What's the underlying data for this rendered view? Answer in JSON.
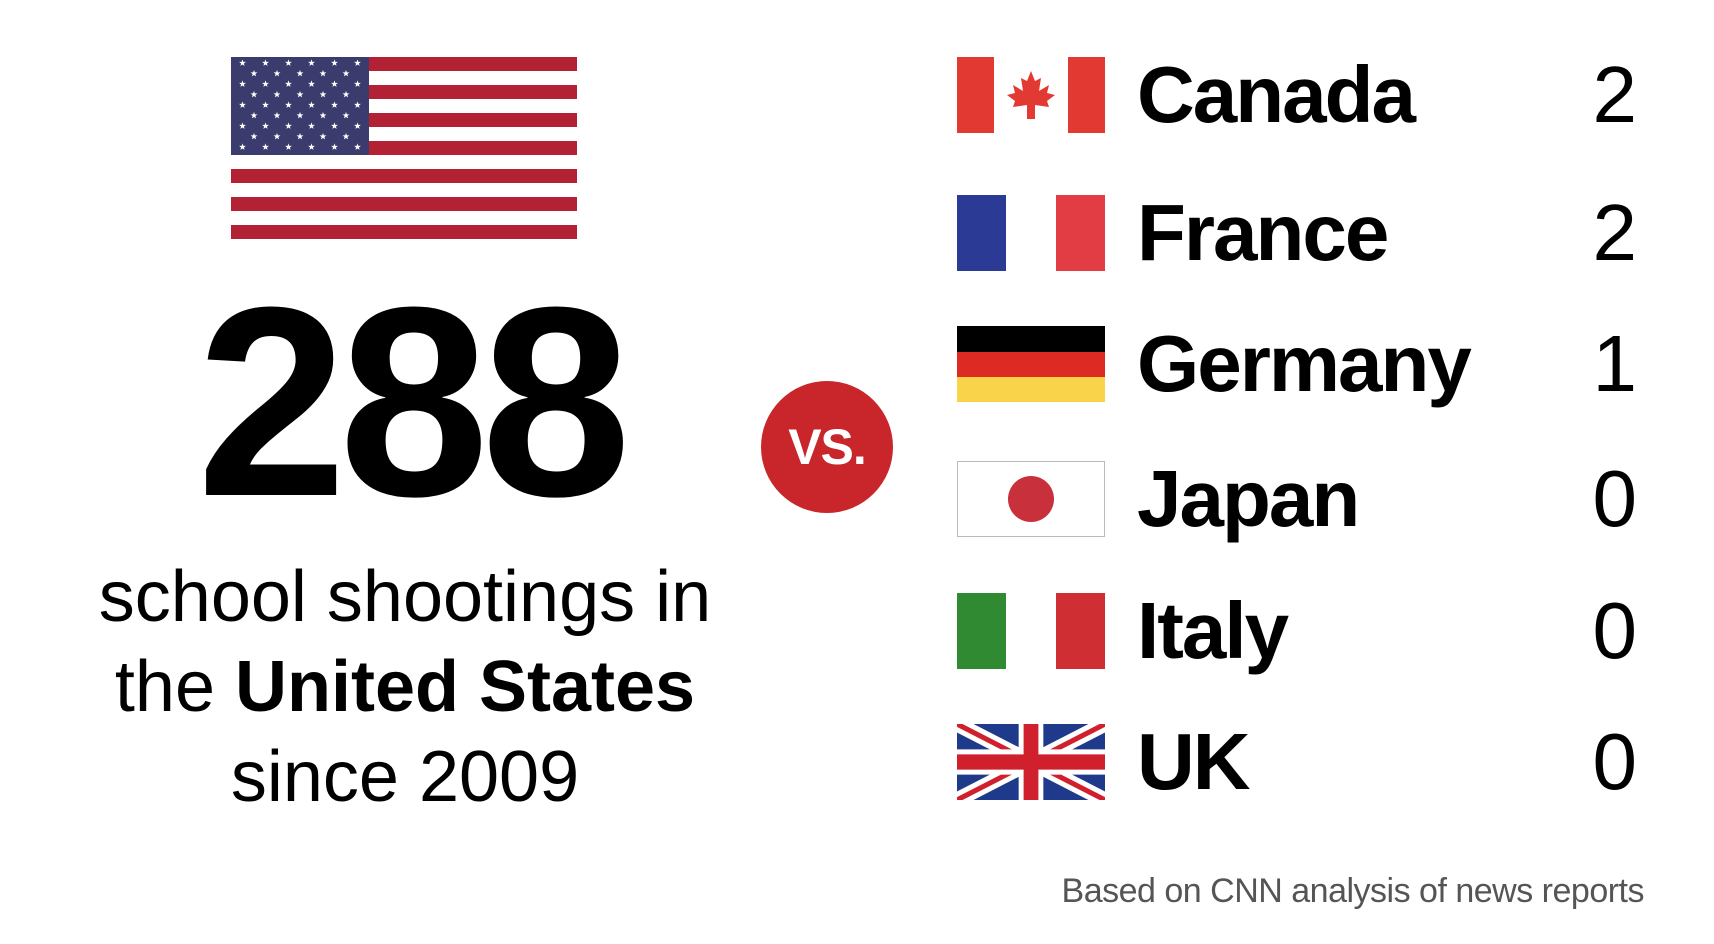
{
  "main_stat": {
    "value": "288",
    "line1": "school shootings in",
    "line2_prefix": "the ",
    "line2_bold": "United States",
    "line3": "since 2009"
  },
  "vs_label": "VS.",
  "countries": [
    {
      "name": "Canada",
      "count": "2",
      "flag": "canada-flag"
    },
    {
      "name": "France",
      "count": "2",
      "flag": "france-flag"
    },
    {
      "name": "Germany",
      "count": "1",
      "flag": "germany-flag"
    },
    {
      "name": "Japan",
      "count": "0",
      "flag": "japan-flag"
    },
    {
      "name": "Italy",
      "count": "0",
      "flag": "italy-flag"
    },
    {
      "name": "UK",
      "count": "0",
      "flag": "uk-flag"
    }
  ],
  "source": "Based on CNN analysis of news reports",
  "colors": {
    "accent_red": "#c8262b",
    "us_blue": "#3c3b6e",
    "us_red": "#b22234"
  }
}
